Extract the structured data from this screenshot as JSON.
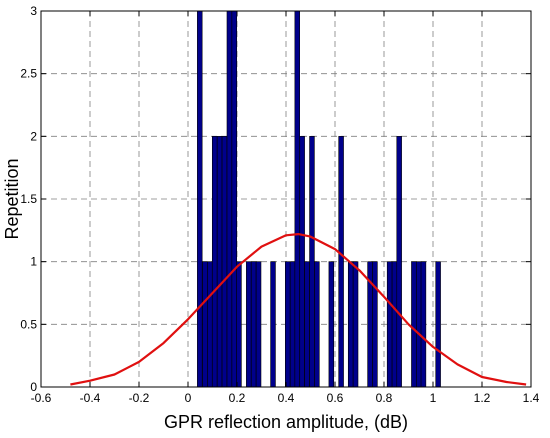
{
  "chart_data": {
    "type": "bar",
    "title": "",
    "xlabel": "GPR reflection amplitude, (dB)",
    "ylabel": "Repetition",
    "xlim": [
      -0.6,
      1.4
    ],
    "ylim": [
      0,
      3
    ],
    "xticks": [
      -0.6,
      -0.4,
      -0.2,
      0,
      0.2,
      0.4,
      0.6,
      0.8,
      1,
      1.2,
      1.4
    ],
    "yticks": [
      0,
      0.5,
      1,
      1.5,
      2,
      2.5,
      3
    ],
    "xtick_labels": [
      "-0.6",
      "-0.4",
      "-0.2",
      "0",
      "0.2",
      "0.4",
      "0.6",
      "0.8",
      "1",
      "1.2",
      "1.4"
    ],
    "ytick_labels": [
      "0",
      "0.5",
      "1",
      "1.5",
      "2",
      "2.5",
      "3"
    ],
    "grid": true,
    "bar_color": "#00008B",
    "bar_width": 0.0197,
    "bars": [
      {
        "x": 0.048,
        "value": 3
      },
      {
        "x": 0.069,
        "value": 1
      },
      {
        "x": 0.089,
        "value": 1
      },
      {
        "x": 0.109,
        "value": 2
      },
      {
        "x": 0.129,
        "value": 2
      },
      {
        "x": 0.149,
        "value": 2
      },
      {
        "x": 0.169,
        "value": 3
      },
      {
        "x": 0.189,
        "value": 3
      },
      {
        "x": 0.208,
        "value": 1
      },
      {
        "x": 0.248,
        "value": 1
      },
      {
        "x": 0.268,
        "value": 1
      },
      {
        "x": 0.288,
        "value": 1
      },
      {
        "x": 0.347,
        "value": 1
      },
      {
        "x": 0.407,
        "value": 1
      },
      {
        "x": 0.427,
        "value": 1
      },
      {
        "x": 0.446,
        "value": 3
      },
      {
        "x": 0.466,
        "value": 2
      },
      {
        "x": 0.486,
        "value": 1
      },
      {
        "x": 0.506,
        "value": 2
      },
      {
        "x": 0.526,
        "value": 1
      },
      {
        "x": 0.585,
        "value": 1
      },
      {
        "x": 0.625,
        "value": 2
      },
      {
        "x": 0.664,
        "value": 1
      },
      {
        "x": 0.684,
        "value": 1
      },
      {
        "x": 0.743,
        "value": 1
      },
      {
        "x": 0.763,
        "value": 1
      },
      {
        "x": 0.823,
        "value": 1
      },
      {
        "x": 0.843,
        "value": 1
      },
      {
        "x": 0.862,
        "value": 2
      },
      {
        "x": 0.922,
        "value": 1
      },
      {
        "x": 0.942,
        "value": 1
      },
      {
        "x": 0.961,
        "value": 1
      },
      {
        "x": 1.021,
        "value": 1
      }
    ],
    "series": [
      {
        "type": "line",
        "color": "#E01010",
        "x": [
          -0.48,
          -0.4,
          -0.3,
          -0.2,
          -0.1,
          0,
          0.1,
          0.2,
          0.3,
          0.4,
          0.45,
          0.5,
          0.6,
          0.7,
          0.8,
          0.9,
          1.0,
          1.1,
          1.2,
          1.3,
          1.38
        ],
        "y": [
          0.02,
          0.05,
          0.1,
          0.2,
          0.35,
          0.54,
          0.75,
          0.96,
          1.12,
          1.21,
          1.22,
          1.2,
          1.1,
          0.93,
          0.72,
          0.5,
          0.32,
          0.18,
          0.08,
          0.04,
          0.02
        ]
      }
    ]
  }
}
